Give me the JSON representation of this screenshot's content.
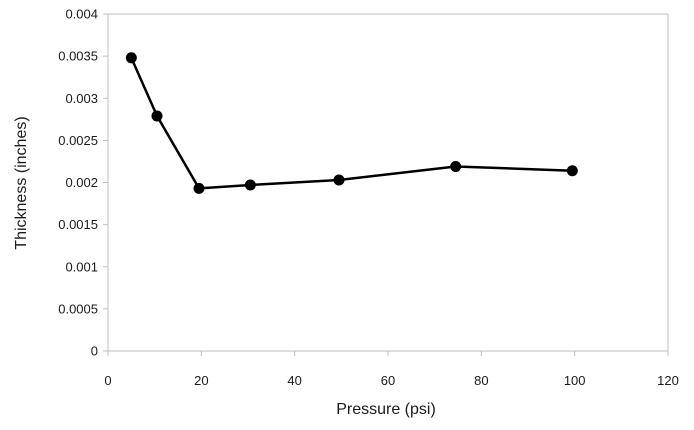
{
  "chart_data": {
    "type": "line",
    "title": "",
    "xlabel": "Pressure (psi)",
    "ylabel": "Thickness (inches)",
    "xlim": [
      0,
      120
    ],
    "ylim": [
      0,
      0.004
    ],
    "x_ticks": [
      0,
      20,
      40,
      60,
      80,
      100,
      120
    ],
    "x_tick_labels": [
      "0",
      "20",
      "40",
      "60",
      "80",
      "100",
      "120"
    ],
    "y_ticks": [
      0,
      0.0005,
      0.001,
      0.0015,
      0.002,
      0.0025,
      0.003,
      0.0035,
      0.004
    ],
    "y_tick_labels": [
      "0",
      "0.0005",
      "0.001",
      "0.0015",
      "0.002",
      "0.0025",
      "0.003",
      "0.0035",
      "0.004"
    ],
    "grid": false,
    "legend": "none",
    "series": [
      {
        "x": [
          5,
          10.5,
          19.5,
          30.5,
          49.5,
          74.5,
          99.5
        ],
        "y": [
          0.00348,
          0.00279,
          0.00193,
          0.00197,
          0.00203,
          0.00219,
          0.00214
        ],
        "color": "#000000",
        "marker": "circle"
      }
    ],
    "axis_color": "#bfbfbf"
  }
}
